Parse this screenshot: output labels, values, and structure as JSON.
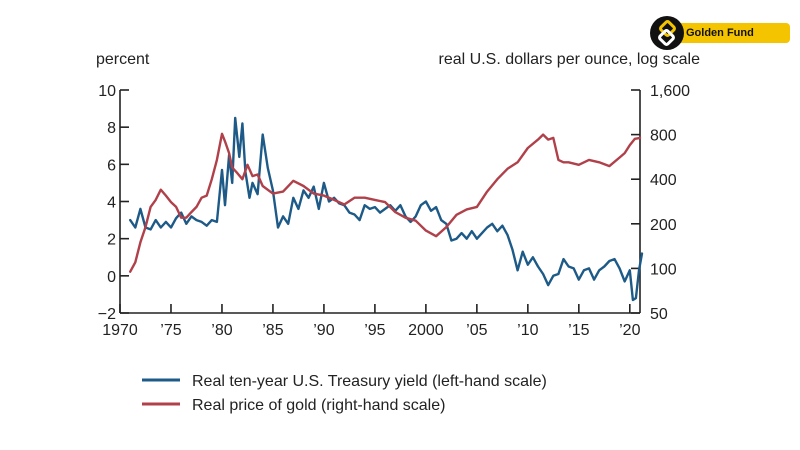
{
  "brand": {
    "name": "Golden Fund",
    "logo_icon": "golden-fund-logo-icon",
    "accent": "#f5c400"
  },
  "chart_data": {
    "type": "line",
    "left_axis_label": "percent",
    "right_axis_label": "real U.S. dollars per ounce, log scale",
    "left_ylim": [
      -2,
      10
    ],
    "left_ticks": [
      10,
      8,
      6,
      4,
      2,
      0,
      -2
    ],
    "left_tick_labels": [
      "10",
      "8",
      "6",
      "4",
      "2",
      "0",
      "−2"
    ],
    "right_ylim": [
      50,
      1600
    ],
    "right_scale": "log",
    "right_ticks": [
      1600,
      800,
      400,
      200,
      100,
      50
    ],
    "right_tick_labels": [
      "1,600",
      "800",
      "400",
      "200",
      "100",
      "50"
    ],
    "xlim": [
      1970,
      2021
    ],
    "x_ticks": [
      1970,
      1975,
      1980,
      1985,
      1990,
      1995,
      2000,
      2005,
      2010,
      2015,
      2020
    ],
    "x_tick_labels": [
      "1970",
      "’75",
      "’80",
      "’85",
      "’90",
      "’95",
      "2000",
      "’05",
      "’10",
      "’15",
      "’20"
    ],
    "series": [
      {
        "name": "Real ten-year U.S. Treasury yield (left-hand scale)",
        "axis": "left",
        "color": "#1d5a87",
        "x": [
          1971.0,
          1971.5,
          1972.0,
          1972.5,
          1973.0,
          1973.5,
          1974.0,
          1974.5,
          1975.0,
          1975.5,
          1976.0,
          1976.5,
          1977.0,
          1977.5,
          1978.0,
          1978.5,
          1979.0,
          1979.5,
          1980.0,
          1980.3,
          1980.7,
          1981.0,
          1981.3,
          1981.7,
          1982.0,
          1982.3,
          1982.7,
          1983.0,
          1983.5,
          1984.0,
          1984.5,
          1985.0,
          1985.5,
          1986.0,
          1986.5,
          1987.0,
          1987.5,
          1988.0,
          1988.5,
          1989.0,
          1989.5,
          1990.0,
          1990.5,
          1991.0,
          1991.5,
          1992.0,
          1992.5,
          1993.0,
          1993.5,
          1994.0,
          1994.5,
          1995.0,
          1995.5,
          1996.0,
          1996.5,
          1997.0,
          1997.5,
          1998.0,
          1998.5,
          1999.0,
          1999.5,
          2000.0,
          2000.5,
          2001.0,
          2001.5,
          2002.0,
          2002.5,
          2003.0,
          2003.5,
          2004.0,
          2004.5,
          2005.0,
          2005.5,
          2006.0,
          2006.5,
          2007.0,
          2007.5,
          2008.0,
          2008.5,
          2009.0,
          2009.5,
          2010.0,
          2010.5,
          2011.0,
          2011.5,
          2012.0,
          2012.5,
          2013.0,
          2013.5,
          2014.0,
          2014.5,
          2015.0,
          2015.5,
          2016.0,
          2016.5,
          2017.0,
          2017.5,
          2018.0,
          2018.5,
          2019.0,
          2019.5,
          2020.0,
          2020.3,
          2020.6,
          2020.9,
          2021.2
        ],
        "values": [
          3.0,
          2.6,
          3.6,
          2.6,
          2.5,
          3.0,
          2.6,
          2.9,
          2.6,
          3.1,
          3.4,
          2.8,
          3.2,
          3.0,
          2.9,
          2.7,
          3.0,
          2.9,
          5.7,
          3.8,
          6.5,
          5.0,
          8.5,
          6.4,
          8.2,
          5.6,
          4.2,
          5.0,
          4.4,
          7.6,
          5.8,
          4.6,
          2.6,
          3.2,
          2.8,
          4.2,
          3.6,
          4.6,
          4.2,
          4.8,
          3.6,
          5.0,
          4.0,
          4.2,
          3.9,
          3.8,
          3.4,
          3.3,
          3.0,
          3.8,
          3.6,
          3.7,
          3.4,
          3.6,
          3.8,
          3.5,
          3.8,
          3.2,
          2.9,
          3.2,
          3.8,
          4.0,
          3.5,
          3.7,
          3.0,
          2.8,
          1.9,
          2.0,
          2.3,
          2.0,
          2.4,
          2.0,
          2.3,
          2.6,
          2.8,
          2.4,
          2.7,
          2.2,
          1.4,
          0.3,
          1.3,
          0.6,
          1.0,
          0.5,
          0.1,
          -0.5,
          0.0,
          0.1,
          0.9,
          0.5,
          0.4,
          -0.2,
          0.3,
          0.4,
          -0.2,
          0.3,
          0.5,
          0.8,
          0.9,
          0.4,
          -0.3,
          0.3,
          -1.3,
          -1.2,
          0.3,
          1.2
        ]
      },
      {
        "name": "Real price of gold (right-hand scale)",
        "axis": "right",
        "color": "#b0404a",
        "x": [
          1971.0,
          1971.5,
          1972.0,
          1972.5,
          1973.0,
          1973.5,
          1974.0,
          1974.5,
          1975.0,
          1975.5,
          1976.0,
          1976.5,
          1977.0,
          1977.5,
          1978.0,
          1978.5,
          1979.0,
          1979.5,
          1980.0,
          1980.3,
          1980.7,
          1981.0,
          1981.5,
          1982.0,
          1982.5,
          1983.0,
          1983.5,
          1984.0,
          1985.0,
          1986.0,
          1987.0,
          1988.0,
          1989.0,
          1990.0,
          1991.0,
          1992.0,
          1993.0,
          1994.0,
          1995.0,
          1996.0,
          1997.0,
          1998.0,
          1999.0,
          2000.0,
          2001.0,
          2002.0,
          2003.0,
          2004.0,
          2005.0,
          2006.0,
          2007.0,
          2008.0,
          2009.0,
          2010.0,
          2011.0,
          2011.5,
          2012.0,
          2012.5,
          2013.0,
          2013.5,
          2014.0,
          2015.0,
          2016.0,
          2017.0,
          2018.0,
          2019.0,
          2019.5,
          2020.0,
          2020.5,
          2021.0
        ],
        "values": [
          95,
          110,
          150,
          190,
          260,
          290,
          340,
          310,
          280,
          260,
          220,
          220,
          240,
          260,
          300,
          310,
          400,
          540,
          810,
          720,
          600,
          480,
          440,
          400,
          500,
          420,
          430,
          360,
          320,
          330,
          390,
          360,
          320,
          310,
          290,
          270,
          300,
          300,
          290,
          280,
          240,
          220,
          210,
          180,
          165,
          190,
          230,
          250,
          260,
          330,
          400,
          470,
          520,
          650,
          740,
          800,
          740,
          760,
          540,
          520,
          520,
          500,
          540,
          520,
          490,
          560,
          600,
          680,
          750,
          760
        ]
      }
    ]
  }
}
